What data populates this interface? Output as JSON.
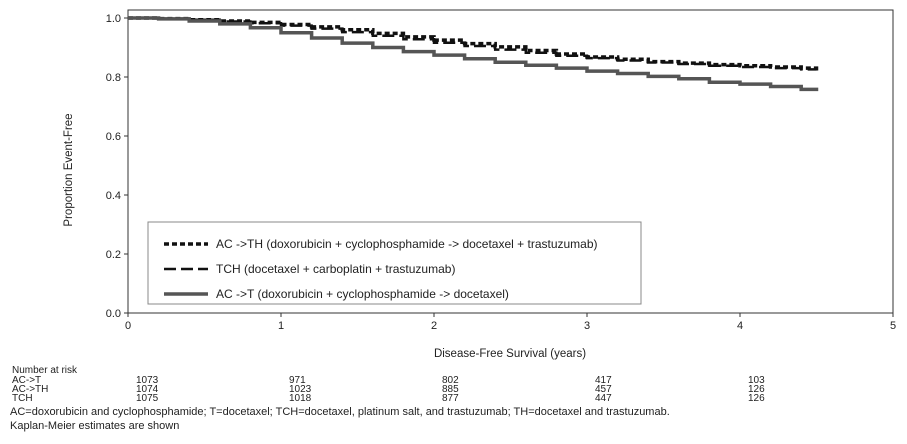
{
  "chart_data": {
    "type": "line",
    "step": true,
    "ylabel": "Proportion Event-Free",
    "xlabel": "Disease-Free Survival (years)",
    "xlim": [
      0,
      5
    ],
    "ylim": [
      0,
      1
    ],
    "x_ticks": [
      "0",
      "1",
      "2",
      "3",
      "4",
      "5"
    ],
    "y_ticks": [
      "0.0",
      "0.2",
      "0.4",
      "0.6",
      "0.8",
      "1.0"
    ],
    "grid": false,
    "legend_position": "bottom-left",
    "series": [
      {
        "name": "AC ->TH (doxorubicin + cyclophosphamide -> docetaxel + trastuzumab)",
        "style": "dotted-thick",
        "color": "#111111",
        "x": [
          0,
          0.2,
          0.4,
          0.6,
          0.8,
          1.0,
          1.2,
          1.4,
          1.6,
          1.8,
          2.0,
          2.2,
          2.4,
          2.6,
          2.8,
          3.0,
          3.2,
          3.4,
          3.6,
          3.8,
          4.0,
          4.2,
          4.4,
          4.5
        ],
        "y": [
          1.0,
          0.998,
          0.994,
          0.99,
          0.985,
          0.978,
          0.97,
          0.96,
          0.948,
          0.936,
          0.925,
          0.913,
          0.902,
          0.89,
          0.878,
          0.868,
          0.86,
          0.852,
          0.847,
          0.842,
          0.838,
          0.834,
          0.83,
          0.812
        ]
      },
      {
        "name": "TCH (docetaxel + carboplatin + trastuzumab)",
        "style": "dashed",
        "color": "#111111",
        "x": [
          0,
          0.2,
          0.4,
          0.6,
          0.8,
          1.0,
          1.2,
          1.4,
          1.6,
          1.8,
          2.0,
          2.2,
          2.4,
          2.6,
          2.8,
          3.0,
          3.2,
          3.4,
          3.6,
          3.8,
          4.0,
          4.2,
          4.4,
          4.5
        ],
        "y": [
          1.0,
          0.998,
          0.994,
          0.988,
          0.982,
          0.974,
          0.964,
          0.952,
          0.94,
          0.928,
          0.916,
          0.905,
          0.893,
          0.882,
          0.872,
          0.864,
          0.856,
          0.849,
          0.844,
          0.838,
          0.834,
          0.83,
          0.826,
          0.826
        ]
      },
      {
        "name": "AC ->T (doxorubicin + cyclophosphamide -> docetaxel)",
        "style": "solid-thick",
        "color": "#555555",
        "x": [
          0,
          0.2,
          0.4,
          0.6,
          0.8,
          1.0,
          1.2,
          1.4,
          1.6,
          1.8,
          2.0,
          2.2,
          2.4,
          2.6,
          2.8,
          3.0,
          3.2,
          3.4,
          3.6,
          3.8,
          4.0,
          4.2,
          4.4,
          4.5
        ],
        "y": [
          1.0,
          0.997,
          0.99,
          0.98,
          0.967,
          0.95,
          0.932,
          0.915,
          0.9,
          0.886,
          0.874,
          0.862,
          0.85,
          0.84,
          0.83,
          0.82,
          0.812,
          0.802,
          0.794,
          0.782,
          0.776,
          0.768,
          0.758,
          0.752
        ]
      }
    ]
  },
  "risk_table": {
    "title": "Number at risk",
    "rows": [
      {
        "label": "AC->T",
        "values": [
          "1073",
          "971",
          "802",
          "417",
          "103"
        ]
      },
      {
        "label": "AC->TH",
        "values": [
          "1074",
          "1023",
          "885",
          "457",
          "126"
        ]
      },
      {
        "label": "TCH",
        "values": [
          "1075",
          "1018",
          "877",
          "447",
          "126"
        ]
      }
    ]
  },
  "footnotes": [
    "AC=doxorubicin and cyclophosphamide; T=docetaxel; TCH=docetaxel, platinum salt, and trastuzumab; TH=docetaxel and trastuzumab.",
    "Kaplan-Meier estimates are shown"
  ]
}
